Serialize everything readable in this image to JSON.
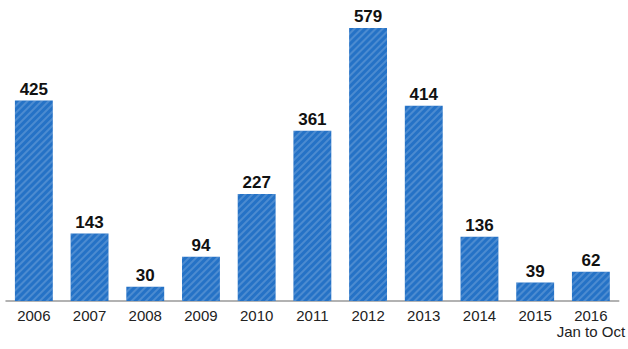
{
  "chart_data": {
    "type": "bar",
    "categories": [
      "2006",
      "2007",
      "2008",
      "2009",
      "2010",
      "2011",
      "2012",
      "2013",
      "2014",
      "2015",
      "2016\nJan to Oct"
    ],
    "values": [
      425,
      143,
      30,
      94,
      227,
      361,
      579,
      414,
      136,
      39,
      62
    ],
    "color": "#2572c6",
    "ylim": [
      0,
      600
    ],
    "yticks": [
      0,
      600
    ],
    "grid": false,
    "data_labels": true,
    "tick_labels": "x"
  }
}
